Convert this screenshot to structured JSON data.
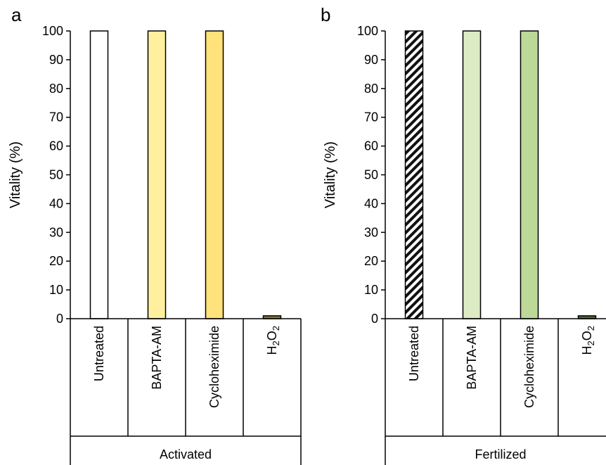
{
  "chart_data": [
    {
      "type": "bar",
      "panel_label": "a",
      "ylabel": "Vitality (%)",
      "ylim": [
        0,
        100
      ],
      "yticks": [
        "0",
        "10",
        "20",
        "30",
        "40",
        "50",
        "60",
        "70",
        "80",
        "90",
        "100"
      ],
      "categories": [
        "Untreated",
        "BAPTA-AM",
        "Cycloheximide",
        "H2O2"
      ],
      "values": [
        100,
        100,
        100,
        1
      ],
      "group_label": "Activated",
      "bar_colors": [
        "#ffffff",
        "#fff0a0",
        "#ffe27a",
        "#8c7a2a"
      ],
      "bar_patterns": [
        "none",
        "none",
        "none",
        "none"
      ]
    },
    {
      "type": "bar",
      "panel_label": "b",
      "ylabel": "Vitality (%)",
      "ylim": [
        0,
        100
      ],
      "yticks": [
        "0",
        "10",
        "20",
        "30",
        "40",
        "50",
        "60",
        "70",
        "80",
        "90",
        "100"
      ],
      "categories": [
        "Untreated",
        "BAPTA-AM",
        "Cycloheximide",
        "H2O2"
      ],
      "values": [
        100,
        100,
        100,
        1
      ],
      "group_label": "Fertilized",
      "bar_colors": [
        "#ffffff",
        "#dcebc4",
        "#bcd998",
        "#4f6a2c"
      ],
      "bar_patterns": [
        "hatch",
        "none",
        "none",
        "none"
      ]
    }
  ]
}
